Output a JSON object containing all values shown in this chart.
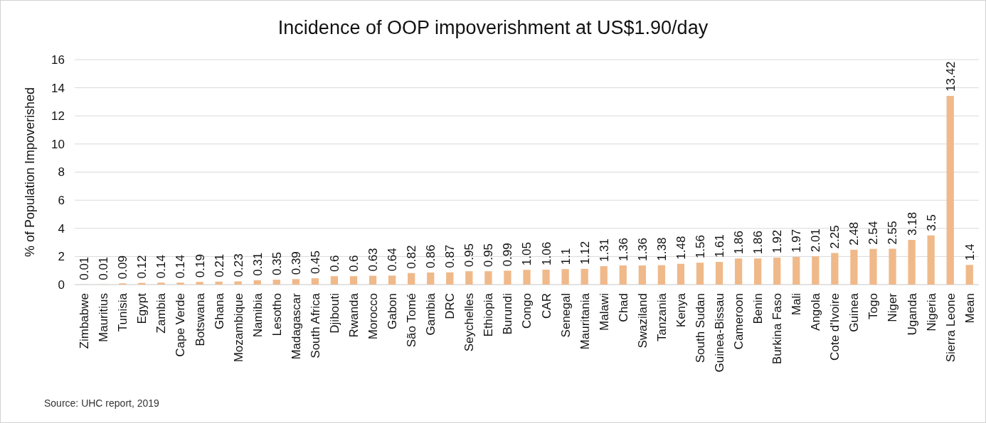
{
  "chart_data": {
    "type": "bar",
    "title": "Incidence of OOP impoverishment at US$1.90/day",
    "ylabel": "% of Population Impoverished",
    "categories": [
      "Zimbabwe",
      "Mauritius",
      "Tunisia",
      "Egypt",
      "Zambia",
      "Cape Verde",
      "Botswana",
      "Ghana",
      "Mozambique",
      "Namibia",
      "Lesotho",
      "Madagascar",
      "South Africa",
      "Djibouti",
      "Rwanda",
      "Morocco",
      "Gabon",
      "São Tomé",
      "Gambia",
      "DRC",
      "Seychelles",
      "Ethiopia",
      "Burundi",
      "Congo",
      "CAR",
      "Senegal",
      "Mauritania",
      "Malawi",
      "Chad",
      "Swaziland",
      "Tanzania",
      "Kenya",
      "South Sudan",
      "Guinea-Bissau",
      "Cameroon",
      "Benin",
      "Burkina Faso",
      "Mali",
      "Angola",
      "Cote d'Ivoire",
      "Guinea",
      "Togo",
      "Niger",
      "Uganda",
      "Nigeria",
      "Sierra Leone",
      "Mean"
    ],
    "values": [
      0.01,
      0.01,
      0.09,
      0.12,
      0.14,
      0.14,
      0.19,
      0.21,
      0.23,
      0.31,
      0.35,
      0.39,
      0.45,
      0.6,
      0.6,
      0.63,
      0.64,
      0.82,
      0.86,
      0.87,
      0.95,
      0.95,
      0.99,
      1.05,
      1.06,
      1.1,
      1.12,
      1.31,
      1.36,
      1.36,
      1.38,
      1.48,
      1.56,
      1.61,
      1.86,
      1.86,
      1.92,
      1.97,
      2.01,
      2.25,
      2.48,
      2.54,
      2.55,
      3.18,
      3.5,
      13.42,
      1.4
    ],
    "color": "#f0b98a",
    "ylim": [
      0,
      16
    ],
    "yticks": [
      0,
      2,
      4,
      6,
      8,
      10,
      12,
      14,
      16
    ],
    "grid": "y",
    "data_labels": true,
    "annotations": [
      "Source: UHC report, 2019"
    ]
  }
}
